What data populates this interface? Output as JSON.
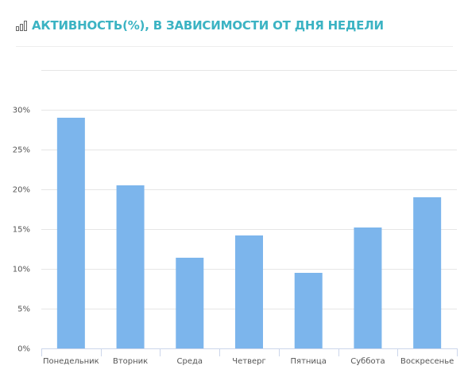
{
  "header": {
    "title": "АКТИВНОСТЬ(%), В ЗАВИСИМОСТИ ОТ ДНЯ НЕДЕЛИ",
    "icon": "bar-chart-icon"
  },
  "colors": {
    "accent": "#3bb3c3",
    "bar": "#7cb5ec",
    "grid": "#e6e6e6",
    "axis": "#ccd6eb"
  },
  "chart_data": {
    "type": "bar",
    "title": "АКТИВНОСТЬ(%), В ЗАВИСИМОСТИ ОТ ДНЯ НЕДЕЛИ",
    "categories": [
      "Понедельник",
      "Вторник",
      "Среда",
      "Четверг",
      "Пятница",
      "Суббота",
      "Воскресенье"
    ],
    "values": [
      29,
      20.5,
      11.4,
      14.2,
      9.5,
      15.2,
      19
    ],
    "ylim": [
      0,
      35
    ],
    "yticks": [
      0,
      5,
      10,
      15,
      20,
      25,
      30
    ],
    "ytick_labels": [
      "0%",
      "5%",
      "10%",
      "15%",
      "20%",
      "25%",
      "30%"
    ],
    "xlabel": "",
    "ylabel": "",
    "grid": true,
    "legend": "none"
  }
}
